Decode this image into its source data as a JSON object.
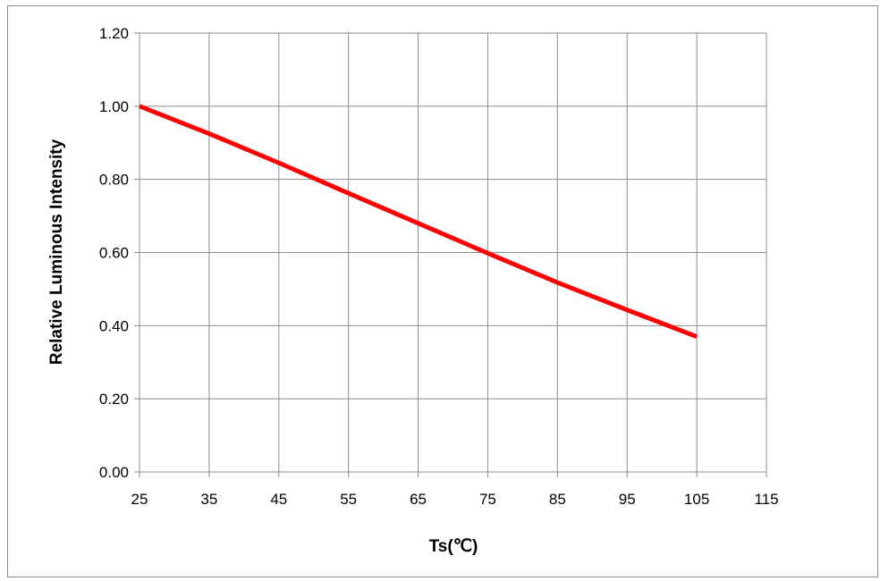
{
  "chart_data": {
    "type": "line",
    "title": "",
    "xlabel": "Ts(℃)",
    "ylabel": "Relative Luminous Intensity",
    "xlim": [
      25,
      115
    ],
    "ylim": [
      0,
      1.2
    ],
    "x_ticks": [
      "25",
      "35",
      "45",
      "55",
      "65",
      "75",
      "85",
      "95",
      "105",
      "115"
    ],
    "y_ticks": [
      "0.00",
      "0.20",
      "0.40",
      "0.60",
      "0.80",
      "1.00",
      "1.20"
    ],
    "grid": true,
    "legend": "none",
    "series": [
      {
        "color": "#ff0000",
        "x": [
          25,
          35,
          45,
          55,
          65,
          75,
          85,
          95,
          105
        ],
        "y": [
          1.0,
          0.925,
          0.845,
          0.762,
          0.68,
          0.598,
          0.518,
          0.443,
          0.37
        ]
      }
    ]
  }
}
